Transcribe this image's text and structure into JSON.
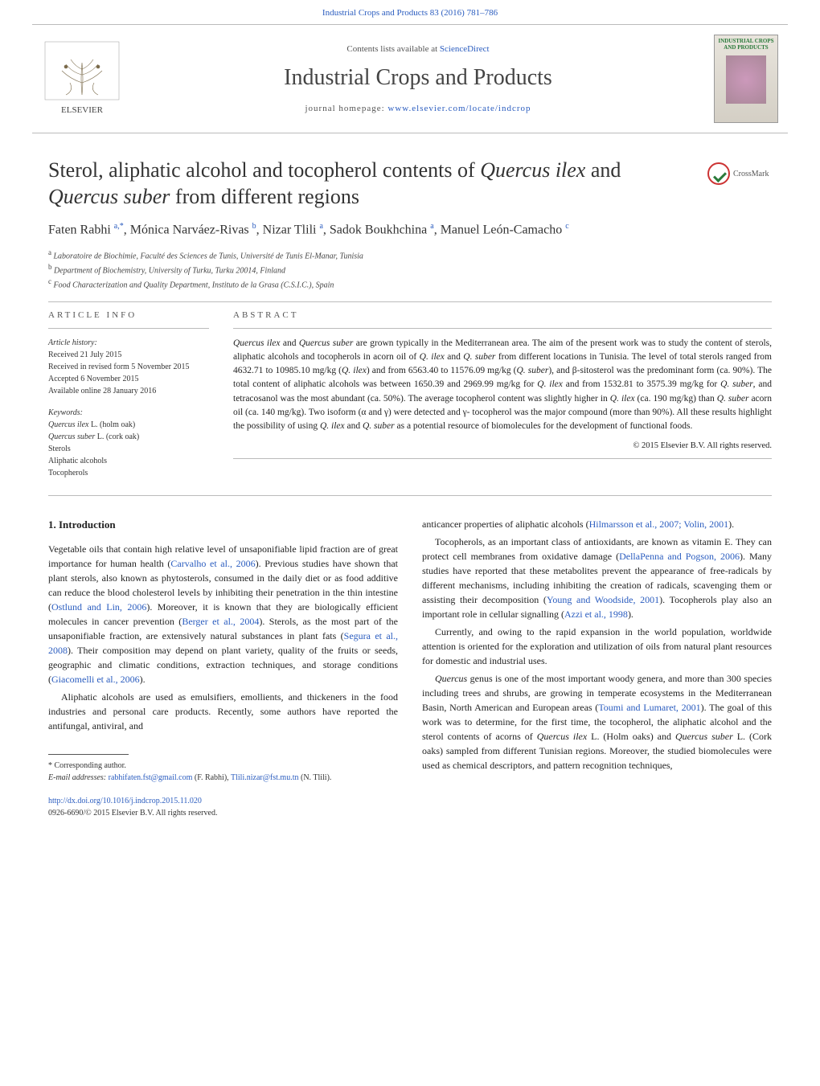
{
  "top_link": "Industrial Crops and Products 83 (2016) 781–786",
  "header": {
    "contents_prefix": "Contents lists available at ",
    "contents_link": "ScienceDirect",
    "journal": "Industrial Crops and Products",
    "homepage_prefix": "journal homepage: ",
    "homepage_link": "www.elsevier.com/locate/indcrop",
    "cover_title": "INDUSTRIAL CROPS AND PRODUCTS",
    "publisher": "ELSEVIER"
  },
  "crossmark_label": "CrossMark",
  "title_parts": {
    "p1": "Sterol, aliphatic alcohol and tocopherol contents of ",
    "em1": "Quercus ilex",
    "p2": " and ",
    "em2": "Quercus suber",
    "p3": " from different regions"
  },
  "authors_line": "Faten Rabhi a,*, Mónica Narváez-Rivas b, Nizar Tlili a, Sadok Boukhchina a, Manuel León-Camacho c",
  "affiliations": [
    "a Laboratoire de Biochimie, Faculté des Sciences de Tunis, Université de Tunis El-Manar, Tunisia",
    "b Department of Biochemistry, University of Turku, Turku 20014, Finland",
    "c Food Characterization and Quality Department, Instituto de la Grasa (C.S.I.C.), Spain"
  ],
  "info": {
    "heading": "ARTICLE INFO",
    "history_label": "Article history:",
    "history": [
      "Received 21 July 2015",
      "Received in revised form 5 November 2015",
      "Accepted 6 November 2015",
      "Available online 28 January 2016"
    ],
    "keywords_label": "Keywords:",
    "keywords": [
      "Quercus ilex L. (holm oak)",
      "Quercus suber L. (cork oak)",
      "Sterols",
      "Aliphatic alcohols",
      "Tocopherols"
    ]
  },
  "abstract": {
    "heading": "ABSTRACT",
    "text": "Quercus ilex and Quercus suber are grown typically in the Mediterranean area. The aim of the present work was to study the content of sterols, aliphatic alcohols and tocopherols in acorn oil of Q. ilex and Q. suber from different locations in Tunisia. The level of total sterols ranged from 4632.71 to 10985.10 mg/kg (Q. ilex) and from 6563.40 to 11576.09 mg/kg (Q. suber), and β-sitosterol was the predominant form (ca. 90%). The total content of aliphatic alcohols was between 1650.39 and 2969.99 mg/kg for Q. ilex and from 1532.81 to 3575.39 mg/kg for Q. suber, and tetracosanol was the most abundant (ca. 50%). The average tocopherol content was slightly higher in Q. ilex (ca. 190 mg/kg) than Q. suber acorn oil (ca. 140 mg/kg). Two isoform (α and γ) were detected and γ- tocopherol was the major compound (more than 90%). All these results highlight the possibility of using Q. ilex and Q. suber as a potential resource of biomolecules for the development of functional foods.",
    "copyright": "© 2015 Elsevier B.V. All rights reserved."
  },
  "body": {
    "section_number": "1.",
    "section_title": "Introduction",
    "left": [
      {
        "t": "p",
        "runs": [
          {
            "text": "Vegetable oils that contain high relative level of unsaponifiable lipid fraction are of great importance for human health ("
          },
          {
            "link": true,
            "text": "Carvalho et al., 2006"
          },
          {
            "text": "). Previous studies have shown that plant sterols, also known as phytosterols, consumed in the daily diet or as food additive can reduce the blood cholesterol levels by inhibiting their penetration in the thin intestine ("
          },
          {
            "link": true,
            "text": "Ostlund and Lin, 2006"
          },
          {
            "text": "). Moreover, it is known that they are biologically efficient molecules in cancer prevention ("
          },
          {
            "link": true,
            "text": "Berger et al., 2004"
          },
          {
            "text": "). Sterols, as the most part of the unsaponifiable fraction, are extensively natural substances in plant fats ("
          },
          {
            "link": true,
            "text": "Segura et al., 2008"
          },
          {
            "text": "). Their composition may depend on plant variety, quality of the fruits or seeds, geographic and climatic conditions, extraction techniques, and storage conditions ("
          },
          {
            "link": true,
            "text": "Giacomelli et al., 2006"
          },
          {
            "text": ")."
          }
        ]
      },
      {
        "t": "p",
        "runs": [
          {
            "text": "Aliphatic alcohols are used as emulsifiers, emollients, and thickeners in the food industries and personal care products. Recently, some authors have reported the antifungal, antiviral, and"
          }
        ]
      }
    ],
    "right": [
      {
        "t": "cont",
        "runs": [
          {
            "text": "anticancer properties of aliphatic alcohols ("
          },
          {
            "link": true,
            "text": "Hilmarsson et al., 2007; Volin, 2001"
          },
          {
            "text": ")."
          }
        ]
      },
      {
        "t": "p",
        "runs": [
          {
            "text": "Tocopherols, as an important class of antioxidants, are known as vitamin E. They can protect cell membranes from oxidative damage ("
          },
          {
            "link": true,
            "text": "DellaPenna and Pogson, 2006"
          },
          {
            "text": "). Many studies have reported that these metabolites prevent the appearance of free-radicals by different mechanisms, including inhibiting the creation of radicals, scavenging them or assisting their decomposition ("
          },
          {
            "link": true,
            "text": "Young and Woodside, 2001"
          },
          {
            "text": "). Tocopherols play also an important role in cellular signalling ("
          },
          {
            "link": true,
            "text": "Azzi et al., 1998"
          },
          {
            "text": ")."
          }
        ]
      },
      {
        "t": "p",
        "runs": [
          {
            "text": "Currently, and owing to the rapid expansion in the world population, worldwide attention is oriented for the exploration and utilization of oils from natural plant resources for domestic and industrial uses."
          }
        ]
      },
      {
        "t": "p",
        "runs": [
          {
            "em": true,
            "text": "Quercus"
          },
          {
            "text": " genus is one of the most important woody genera, and more than 300 species including trees and shrubs, are growing in temperate ecosystems in the Mediterranean Basin, North American and European areas ("
          },
          {
            "link": true,
            "text": "Toumi and Lumaret, 2001"
          },
          {
            "text": "). The goal of this work was to determine, for the first time, the tocopherol, the aliphatic alcohol and the sterol contents of acorns of "
          },
          {
            "em": true,
            "text": "Quercus ilex"
          },
          {
            "text": " L. (Holm oaks) and "
          },
          {
            "em": true,
            "text": "Quercus suber"
          },
          {
            "text": " L. (Cork oaks) sampled from different Tunisian regions. Moreover, the studied biomolecules were used as chemical descriptors, and pattern recognition techniques,"
          }
        ]
      }
    ]
  },
  "footnote": {
    "corr_label": "* Corresponding author.",
    "email_label": "E-mail addresses: ",
    "email1": "rabhifaten.fst@gmail.com",
    "email1_who": " (F. Rabhi), ",
    "email2": "Tlili.nizar@fst.mu.tn",
    "email2_who": " (N. Tlili)."
  },
  "doi": {
    "link": "http://dx.doi.org/10.1016/j.indcrop.2015.11.020",
    "issn": "0926-6690/© 2015 Elsevier B.V. All rights reserved."
  },
  "colors": {
    "link": "#2a5cbf",
    "text": "#222222",
    "muted": "#555555",
    "rule": "#bbbbbb"
  }
}
